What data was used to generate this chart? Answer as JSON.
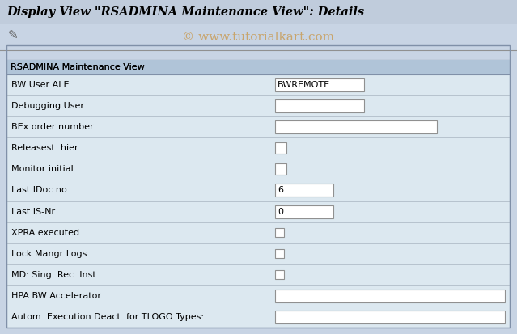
{
  "title": "Display View \"RSADMINA Maintenance View\": Details",
  "title_bg": "#c8d4e4",
  "watermark": "© www.tutorialkart.com",
  "watermark_color": "#c8a060",
  "body_bg": "#c8d4e4",
  "section_label": "RSADMINA Maintenance View",
  "section_label_bg": "#b0c4d8",
  "fields": [
    {
      "label": "BW User ALE",
      "value": "BWREMOTE",
      "type": "text_short"
    },
    {
      "label": "Debugging User",
      "value": "",
      "type": "text_short"
    },
    {
      "label": "BEx order number",
      "value": "",
      "type": "text_medium"
    },
    {
      "label": "Releasest. hier",
      "value": "",
      "type": "checkbox"
    },
    {
      "label": "Monitor initial",
      "value": "",
      "type": "checkbox"
    },
    {
      "label": "Last IDoc no.",
      "value": "6",
      "type": "text_xshort"
    },
    {
      "label": "Last IS-Nr.",
      "value": "0",
      "type": "text_xshort"
    },
    {
      "label": "XPRA executed",
      "value": "",
      "type": "checkbox_sm"
    },
    {
      "label": "Lock Mangr Logs",
      "value": "",
      "type": "checkbox_sm"
    },
    {
      "label": "MD: Sing. Rec. Inst",
      "value": "",
      "type": "checkbox_sm"
    },
    {
      "label": "HPA BW Accelerator",
      "value": "",
      "type": "text_long"
    },
    {
      "label": "Autom. Execution Deact. for TLOGO Types:",
      "value": "",
      "type": "text_long"
    }
  ],
  "field_bg": "#ffffff",
  "field_border": "#909090",
  "label_color": "#000000",
  "value_color": "#000000",
  "row_bg": "#dce8f0",
  "divider_color": "#b0bcc8"
}
